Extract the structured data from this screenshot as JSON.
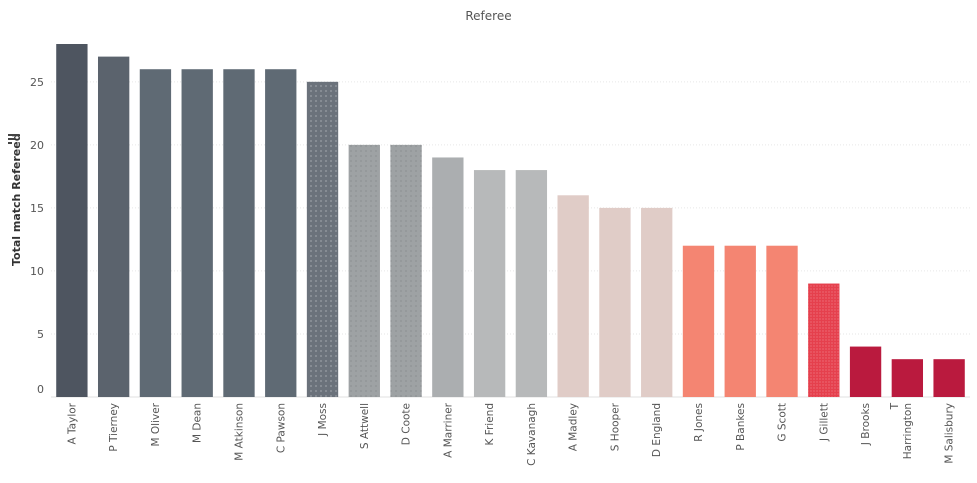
{
  "header": {
    "column_label": "Referee"
  },
  "y_axis": {
    "title": "Total match Refereed",
    "sort_icon": "sort-descending-icon"
  },
  "chart_data": {
    "type": "bar",
    "title": "",
    "xlabel": "Referee",
    "ylabel": "Total match Refereed",
    "ylim": [
      0,
      28
    ],
    "yticks": [
      0,
      5,
      10,
      15,
      20,
      25
    ],
    "grid": "horizontal",
    "categories": [
      "A Taylor",
      "P Tierney",
      "M Oliver",
      "M Dean",
      "M Atkinson",
      "C Pawson",
      "J Moss",
      "S Attwell",
      "D Coote",
      "A Marriner",
      "K Friend",
      "C Kavanagh",
      "A Madley",
      "S Hooper",
      "D England",
      "R Jones",
      "P Bankes",
      "G Scott",
      "J Gillett",
      "J Brooks",
      "T Harrington",
      "M Salisbury"
    ],
    "category_lines": [
      [
        "A Taylor"
      ],
      [
        "P Tierney"
      ],
      [
        "M Oliver"
      ],
      [
        "M Dean"
      ],
      [
        "M Atkinson"
      ],
      [
        "C Pawson"
      ],
      [
        "J Moss"
      ],
      [
        "S Attwell"
      ],
      [
        "D Coote"
      ],
      [
        "A Marriner"
      ],
      [
        "K Friend"
      ],
      [
        "C Kavanagh"
      ],
      [
        "A Madley"
      ],
      [
        "S Hooper"
      ],
      [
        "D England"
      ],
      [
        "R Jones"
      ],
      [
        "P Bankes"
      ],
      [
        "G Scott"
      ],
      [
        "J Gillett"
      ],
      [
        "J Brooks"
      ],
      [
        "T",
        "Harrington"
      ],
      [
        "M Salisbury"
      ]
    ],
    "values": [
      28,
      27,
      26,
      26,
      26,
      26,
      25,
      20,
      20,
      19,
      18,
      18,
      16,
      15,
      15,
      12,
      12,
      12,
      9,
      4,
      3,
      3
    ],
    "colors": [
      "#4e5560",
      "#5b636d",
      "#5f6a74",
      "#5f6a74",
      "#5f6a74",
      "#5f6a74",
      "#6b727b",
      "#9ea2a4",
      "#9ea2a4",
      "#abaeb0",
      "#b7b9ba",
      "#b7b9ba",
      "#e0ccc7",
      "#e0ccc7",
      "#e0ccc7",
      "#f48572",
      "#f48572",
      "#f48572",
      "#e5404d",
      "#ba1a3e",
      "#ba1a3e",
      "#ba1a3e"
    ]
  }
}
